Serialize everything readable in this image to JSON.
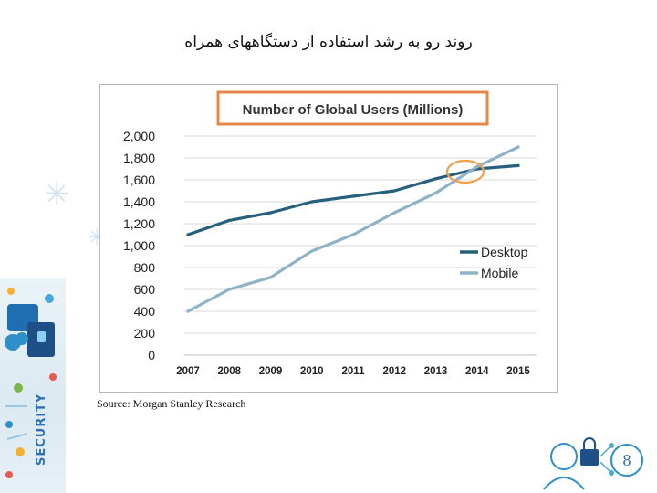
{
  "slide": {
    "title": "روند رو به رشد استفاده از دستگاههای همراه",
    "source": "Source: Morgan Stanley Research",
    "page_number": "8",
    "banner_text": "SECURITY"
  },
  "colors": {
    "desktop": "#27607c",
    "mobile": "#8fb3c6",
    "title_box_border": "#e4874a",
    "highlight_circle": "#f0a04b",
    "grid": "#d9d9d9",
    "axis_text": "#222222",
    "accent": "#2e8fc9"
  },
  "chart_data": {
    "type": "line",
    "title": "Number of Global Users (Millions)",
    "categories": [
      "2007",
      "2008",
      "2009",
      "2010",
      "2011",
      "2012",
      "2013",
      "2014",
      "2015"
    ],
    "series": [
      {
        "name": "Desktop",
        "values": [
          1100,
          1230,
          1300,
          1400,
          1450,
          1500,
          1610,
          1700,
          1730
        ]
      },
      {
        "name": "Mobile",
        "values": [
          400,
          600,
          710,
          950,
          1100,
          1300,
          1480,
          1720,
          1900
        ]
      }
    ],
    "xlabel": "",
    "ylabel": "",
    "ylim": [
      0,
      2000
    ],
    "yticks": [
      "0",
      "200",
      "400",
      "600",
      "800",
      "1,000",
      "1,200",
      "1,400",
      "1,600",
      "1,800",
      "2,000"
    ],
    "ytick_values": [
      0,
      200,
      400,
      600,
      800,
      1000,
      1200,
      1400,
      1600,
      1800,
      2000
    ],
    "grid": true,
    "legend_position": "right-lower",
    "annotation": "crossover highlighted near 2014"
  }
}
